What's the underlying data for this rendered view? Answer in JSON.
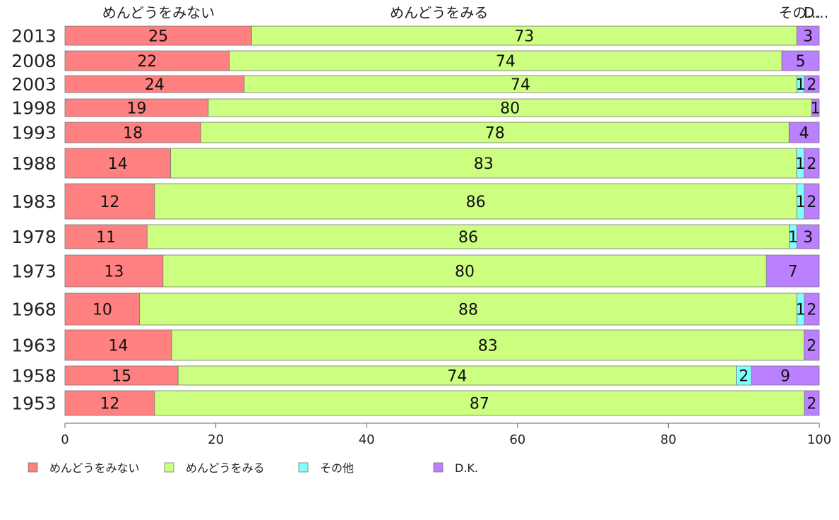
{
  "chart_data": {
    "type": "bar",
    "orientation": "horizontal",
    "stacked": true,
    "categories": [
      "2013",
      "2008",
      "2003",
      "1998",
      "1993",
      "1988",
      "1983",
      "1978",
      "1973",
      "1968",
      "1963",
      "1958",
      "1953"
    ],
    "series": [
      {
        "name": "めんどうをみない",
        "color": "#ff8080",
        "values": [
          25,
          22,
          24,
          19,
          18,
          14,
          12,
          11,
          13,
          10,
          14,
          15,
          12
        ]
      },
      {
        "name": "めんどうをみる",
        "color": "#ccff80",
        "values": [
          73,
          74,
          74,
          80,
          78,
          83,
          86,
          86,
          80,
          88,
          83,
          74,
          87
        ]
      },
      {
        "name": "その他",
        "color": "#80ffff",
        "values": [
          0,
          0,
          1,
          0,
          0,
          1,
          1,
          1,
          0,
          1,
          0,
          2,
          0
        ]
      },
      {
        "name": "D.K.",
        "color": "#bb80ff",
        "values": [
          3,
          5,
          2,
          1,
          4,
          2,
          2,
          3,
          7,
          2,
          2,
          9,
          2
        ]
      }
    ],
    "column_headers": [
      "めんどうをみない",
      "めんどうをみる",
      "その…",
      "D…"
    ],
    "xlim": [
      0,
      100
    ],
    "xticks": [
      0,
      20,
      40,
      60,
      80,
      100
    ],
    "legend_position": "bottom-left",
    "grid": false
  }
}
